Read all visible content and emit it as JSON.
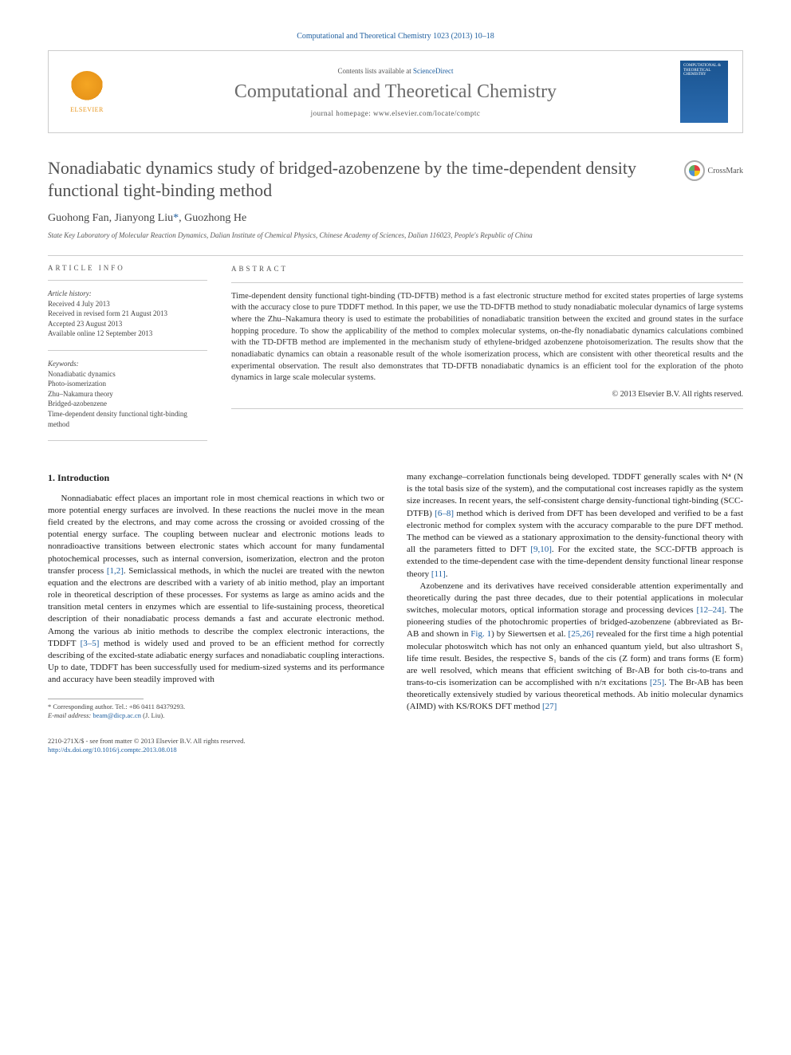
{
  "citation": "Computational and Theoretical Chemistry 1023 (2013) 10–18",
  "header": {
    "contents_prefix": "Contents lists available at ",
    "contents_link": "ScienceDirect",
    "journal_name": "Computational and Theoretical Chemistry",
    "homepage_prefix": "journal homepage: ",
    "homepage_url": "www.elsevier.com/locate/comptc",
    "elsevier_label": "ELSEVIER",
    "cover_text": "COMPUTATIONAL & THEORETICAL CHEMISTRY"
  },
  "article": {
    "title": "Nonadiabatic dynamics study of bridged-azobenzene by the time-dependent density functional tight-binding method",
    "crossmark_label": "CrossMark",
    "authors_html": "Guohong Fan, Jianyong Liu",
    "corr_marker": "*",
    "author3": ", Guozhong He",
    "affiliation": "State Key Laboratory of Molecular Reaction Dynamics, Dalian Institute of Chemical Physics, Chinese Academy of Sciences, Dalian 116023, People's Republic of China"
  },
  "info": {
    "heading": "ARTICLE INFO",
    "history_label": "Article history:",
    "received": "Received 4 July 2013",
    "revised": "Received in revised form 21 August 2013",
    "accepted": "Accepted 23 August 2013",
    "online": "Available online 12 September 2013",
    "keywords_label": "Keywords:",
    "keywords": [
      "Nonadiabatic dynamics",
      "Photo-isomerization",
      "Zhu–Nakamura theory",
      "Bridged-azobenzene",
      "Time-dependent density functional tight-binding method"
    ]
  },
  "abstract": {
    "heading": "ABSTRACT",
    "text": "Time-dependent density functional tight-binding (TD-DFTB) method is a fast electronic structure method for excited states properties of large systems with the accuracy close to pure TDDFT method. In this paper, we use the TD-DFTB method to study nonadiabatic molecular dynamics of large systems where the Zhu–Nakamura theory is used to estimate the probabilities of nonadiabatic transition between the excited and ground states in the surface hopping procedure. To show the applicability of the method to complex molecular systems, on-the-fly nonadiabatic dynamics calculations combined with the TD-DFTB method are implemented in the mechanism study of ethylene-bridged azobenzene photoisomerization. The results show that the nonadiabatic dynamics can obtain a reasonable result of the whole isomerization process, which are consistent with other theoretical results and the experimental observation. The result also demonstrates that TD-DFTB nonadiabatic dynamics is an efficient tool for the exploration of the photo dynamics in large scale molecular systems.",
    "copyright": "© 2013 Elsevier B.V. All rights reserved."
  },
  "body": {
    "section_heading": "1. Introduction",
    "p1a": "Nonnadiabatic effect places an important role in most chemical reactions in which two or more potential energy surfaces are involved. In these reactions the nuclei move in the mean field created by the electrons, and may come across the crossing or avoided crossing of the potential energy surface. The coupling between nuclear and electronic motions leads to nonradioactive transitions between electronic states which account for many fundamental photochemical processes, such as internal conversion, isomerization, electron and the proton transfer process ",
    "ref1": "[1,2]",
    "p1b": ". Semiclassical methods, in which the nuclei are treated with the newton equation and the electrons are described with a variety of ab initio method, play an important role in theoretical description of these processes. For systems as large as amino acids and the transition metal centers in enzymes which are essential to life-sustaining process, theoretical description of their nonadiabatic process demands a fast and accurate electronic method. Among the various ab initio methods to describe the complex electronic interactions, the TDDFT ",
    "ref2": "[3–5]",
    "p1c": " method is widely used and proved to be an efficient method for correctly describing of the excited-state adiabatic energy surfaces and nonadiabatic coupling interactions. Up to date, TDDFT has been successfully used for medium-sized systems and its performance and accuracy have been steadily improved with",
    "p2a": "many exchange–correlation functionals being developed. TDDFT generally scales with N⁴ (N is the total basis size of the system), and the computational cost increases rapidly as the system size increases. In recent years, the self-consistent charge density-functional tight-binding (SCC-DTFB) ",
    "ref3": "[6–8]",
    "p2b": " method which is derived from DFT has been developed and verified to be a fast electronic method for complex system with the accuracy comparable to the pure DFT method. The method can be viewed as a stationary approximation to the density-functional theory with all the parameters fitted to DFT ",
    "ref4": "[9,10]",
    "p2c": ". For the excited state, the SCC-DFTB approach is extended to the time-dependent case with the time-dependent density functional linear response theory ",
    "ref5": "[11]",
    "p2d": ".",
    "p3a": "Azobenzene and its derivatives have received considerable attention experimentally and theoretically during the past three decades, due to their potential applications in molecular switches, molecular motors, optical information storage and processing devices ",
    "ref6": "[12–24]",
    "p3b": ". The pioneering studies of the photochromic properties of bridged-azobenzene (abbreviated as Br-AB and shown in ",
    "ref7": "Fig. 1",
    "p3c": ") by Siewertsen et al. ",
    "ref8": "[25,26]",
    "p3d": " revealed for the first time a high potential molecular photoswitch which has not only an enhanced quantum yield, but also ultrashort S₁ life time result. Besides, the respective S₁ bands of the cis (Z form) and trans forms (E form) are well resolved, which means that efficient switching of Br-AB for both cis-to-trans and trans-to-cis isomerization can be accomplished with n/π excitations ",
    "ref9": "[25]",
    "p3e": ". The Br-AB has been theoretically extensively studied by various theoretical methods. Ab initio molecular dynamics (AIMD) with KS/ROKS DFT method ",
    "ref10": "[27]"
  },
  "footnote": {
    "corr_label": "* Corresponding author. Tel.: +86 0411 84379293.",
    "email_label": "E-mail address: ",
    "email": "beam@dicp.ac.cn",
    "email_suffix": " (J. Liu)."
  },
  "bottom": {
    "issn": "2210-271X/$ - see front matter © 2013 Elsevier B.V. All rights reserved.",
    "doi": "http://dx.doi.org/10.1016/j.comptc.2013.08.018"
  },
  "colors": {
    "link": "#2060a0",
    "elsevier": "#e8951a",
    "journal_cover": "#1a5490"
  }
}
